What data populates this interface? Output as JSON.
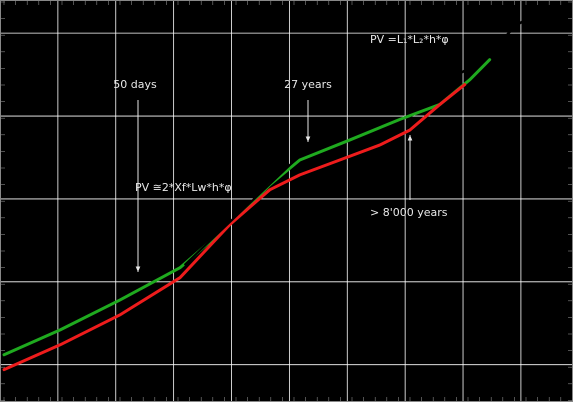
{
  "chart_data": {
    "type": "line",
    "xlim": [
      0,
      9.9
    ],
    "ylim": [
      -0.45,
      4.4
    ],
    "xticks": [
      1,
      2,
      3,
      4,
      5,
      6,
      7,
      8,
      9
    ],
    "yticks": [
      0,
      1,
      2,
      3,
      4
    ],
    "grid": true,
    "background": "#000000",
    "grid_color": "#ffffff",
    "series": [
      {
        "color": "#1faa1f",
        "x": [
          0.07,
          1.04,
          2.07,
          3.11,
          3.97,
          4.66,
          5.18,
          6.04,
          6.91,
          7.6,
          8.12,
          8.46
        ],
        "values": [
          0.12,
          0.42,
          0.78,
          1.17,
          1.69,
          2.17,
          2.47,
          2.71,
          2.96,
          3.14,
          3.44,
          3.68
        ]
      },
      {
        "color": "#ee1c1c",
        "x": [
          0.07,
          1.04,
          2.07,
          3.11,
          3.97,
          4.66,
          5.18,
          5.87,
          6.56,
          7.08,
          7.6,
          8.03
        ],
        "values": [
          -0.06,
          0.24,
          0.6,
          1.05,
          1.69,
          2.11,
          2.29,
          2.47,
          2.65,
          2.83,
          3.14,
          3.38
        ]
      },
      {
        "color": "#000000",
        "x": [
          3.2,
          5.1
        ],
        "values": [
          1.21,
          2.47
        ]
      },
      {
        "color": "#000000",
        "x": [
          7.94,
          9.46
        ],
        "values": [
          3.5,
          4.4
        ]
      }
    ],
    "annotations": [
      "50 days",
      "27 years",
      "PV =L₁*L₂*h*φ",
      "PV ≅2*Xf*Lw*h*φ",
      "> 8'000 years"
    ]
  }
}
